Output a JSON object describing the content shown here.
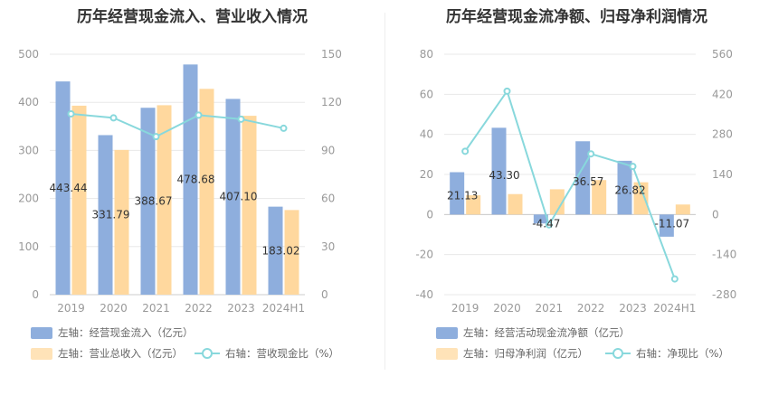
{
  "colors": {
    "bar1": "#8eaedd",
    "bar2": "#ffd89e",
    "line": "#88d8dc",
    "axis_text": "#999999",
    "grid": "#e8e8e8"
  },
  "left": {
    "title": "历年经营现金流入、营业收入情况",
    "legend": {
      "bar1": "左轴：经营现金流入（亿元）",
      "bar2": "左轴：营业总收入（亿元）",
      "line": "右轴：营收现金比（%）"
    }
  },
  "right": {
    "title": "历年经营现金流净额、归母净利润情况",
    "legend": {
      "bar1": "左轴：经营活动现金流净额（亿元）",
      "bar2": "左轴：归母净利润（亿元）",
      "line": "右轴：净现比（%）"
    }
  },
  "chart_data": [
    {
      "type": "bar",
      "title": "历年经营现金流入、营业收入情况",
      "categories": [
        "2019",
        "2020",
        "2021",
        "2022",
        "2023",
        "2024H1"
      ],
      "left_axis": {
        "ticks": [
          "0",
          "100",
          "200",
          "300",
          "400",
          "500"
        ],
        "range": [
          0,
          500
        ]
      },
      "right_axis": {
        "ticks": [
          "0",
          "30",
          "60",
          "90",
          "120",
          "150"
        ],
        "range": [
          0,
          150
        ]
      },
      "series": [
        {
          "name": "左轴：经营现金流入（亿元）",
          "kind": "bar",
          "axis": "left",
          "values": [
            443.44,
            331.79,
            388.67,
            478.68,
            407.1,
            183.02
          ],
          "labels": [
            "443.44",
            "331.79",
            "388.67",
            "478.68",
            "407.10",
            "183.02"
          ]
        },
        {
          "name": "左轴：营业总收入（亿元）",
          "kind": "bar",
          "axis": "left",
          "values": [
            393,
            301,
            394,
            428,
            372,
            176
          ]
        },
        {
          "name": "右轴：营收现金比（%）",
          "kind": "line",
          "axis": "right",
          "values": [
            112.8,
            110.3,
            98.6,
            112.0,
            109.5,
            103.8
          ]
        }
      ]
    },
    {
      "type": "bar",
      "title": "历年经营现金流净额、归母净利润情况",
      "categories": [
        "2019",
        "2020",
        "2021",
        "2022",
        "2023",
        "2024H1"
      ],
      "left_axis": {
        "ticks": [
          "-40",
          "-20",
          "0",
          "20",
          "40",
          "60",
          "80"
        ],
        "range": [
          -40,
          80
        ]
      },
      "right_axis": {
        "ticks": [
          "-280",
          "-140",
          "0",
          "140",
          "280",
          "420",
          "560"
        ],
        "range": [
          -280,
          560
        ]
      },
      "series": [
        {
          "name": "左轴：经营活动现金流净额（亿元）",
          "kind": "bar",
          "axis": "left",
          "values": [
            21.13,
            43.3,
            -4.47,
            36.57,
            26.82,
            -11.07
          ],
          "labels": [
            "21.13",
            "43.30",
            "-4.47",
            "36.57",
            "26.82",
            "-11.07"
          ]
        },
        {
          "name": "左轴：归母净利润（亿元）",
          "kind": "bar",
          "axis": "left",
          "values": [
            9.6,
            10.2,
            12.6,
            17.2,
            16.1,
            5.0
          ]
        },
        {
          "name": "右轴：净现比（%）",
          "kind": "line",
          "axis": "right",
          "values": [
            221,
            431,
            -36,
            212,
            168,
            -225
          ]
        }
      ]
    }
  ]
}
